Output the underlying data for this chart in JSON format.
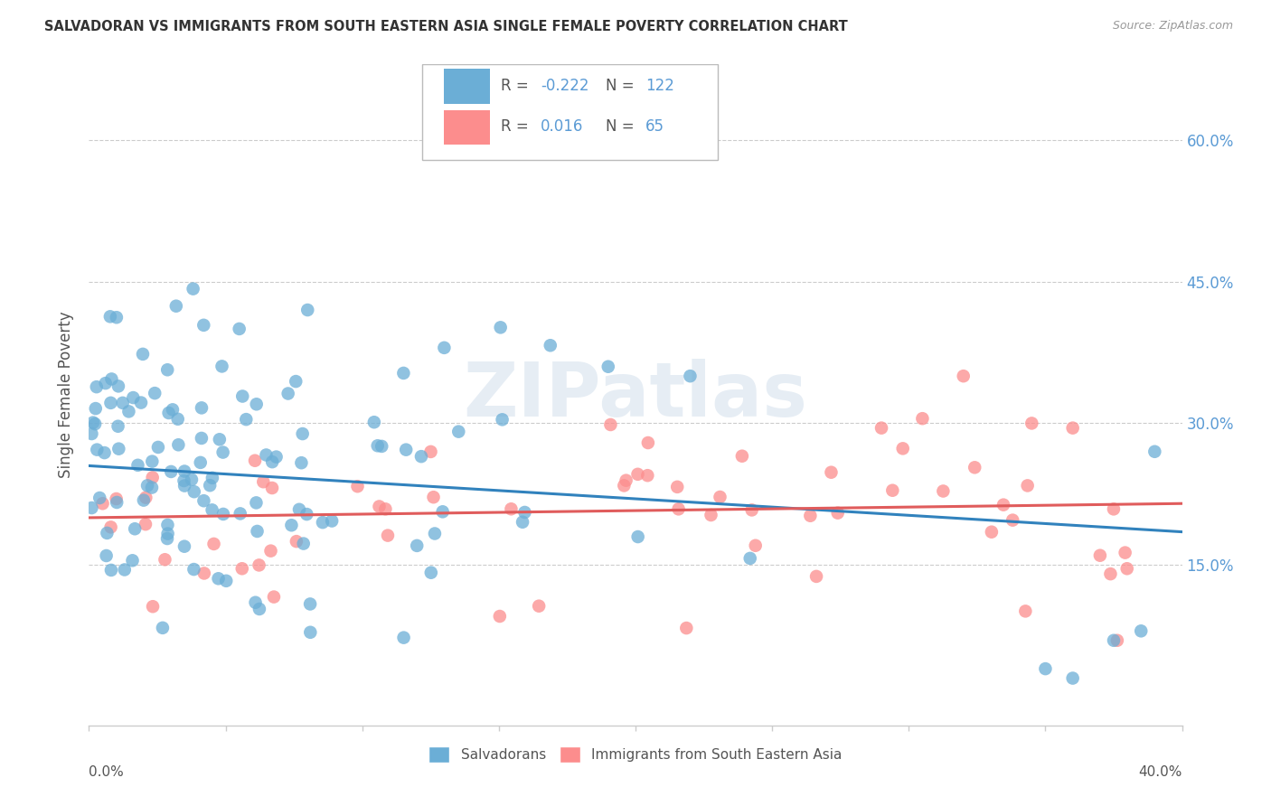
{
  "title": "SALVADORAN VS IMMIGRANTS FROM SOUTH EASTERN ASIA SINGLE FEMALE POVERTY CORRELATION CHART",
  "source": "Source: ZipAtlas.com",
  "ylabel": "Single Female Poverty",
  "yticks": [
    0.0,
    0.15,
    0.3,
    0.45,
    0.6
  ],
  "ytick_labels": [
    "",
    "15.0%",
    "30.0%",
    "45.0%",
    "60.0%"
  ],
  "xlim": [
    0.0,
    0.4
  ],
  "ylim": [
    -0.02,
    0.68
  ],
  "blue_R": -0.222,
  "blue_N": 122,
  "pink_R": 0.016,
  "pink_N": 65,
  "blue_color": "#6baed6",
  "pink_color": "#fc8d8d",
  "blue_line_color": "#3182bd",
  "pink_line_color": "#e05c5c",
  "watermark": "ZIPatlas",
  "legend_label_blue": "Salvadorans",
  "legend_label_pink": "Immigrants from South Eastern Asia"
}
